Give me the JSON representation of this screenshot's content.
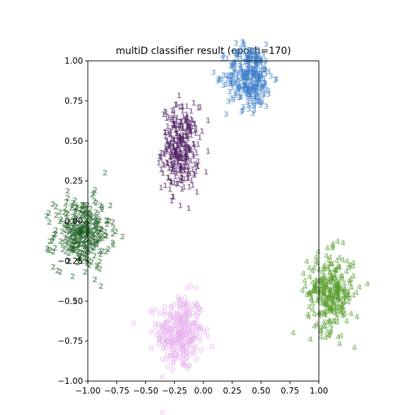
{
  "chart_data": {
    "type": "scatter",
    "title": "multiD classifier result (epoch=170)",
    "xlabel": "",
    "ylabel": "",
    "xlim": [
      -1.0,
      1.0
    ],
    "ylim": [
      -1.0,
      1.0
    ],
    "xticks": [
      "−1.00",
      "−0.75",
      "−0.50",
      "−0.25",
      "0.00",
      "0.25",
      "0.50",
      "0.75",
      "1.00"
    ],
    "yticks": [
      "−1.00",
      "−0.75",
      "−0.50",
      "−0.25",
      "0.00",
      "0.25",
      "0.50",
      "0.75",
      "1.00"
    ],
    "grid": false,
    "legend": "none",
    "marker": "class digit",
    "series": [
      {
        "label": "0",
        "color": "#e8b4ee",
        "center": [
          -0.2,
          -0.7
        ],
        "spread": [
          0.1,
          0.12
        ],
        "count": 300
      },
      {
        "label": "1",
        "color": "#4a1a5e",
        "center": [
          -0.2,
          0.45
        ],
        "spread": [
          0.08,
          0.13
        ],
        "count": 300
      },
      {
        "label": "2",
        "color": "#1b5e20",
        "center": [
          -1.05,
          -0.08
        ],
        "spread": [
          0.12,
          0.11
        ],
        "count": 300
      },
      {
        "label": "3",
        "color": "#3a7cc9",
        "center": [
          0.4,
          0.9
        ],
        "spread": [
          0.1,
          0.1
        ],
        "count": 300
      },
      {
        "label": "4",
        "color": "#5a9e2e",
        "center": [
          1.1,
          -0.45
        ],
        "spread": [
          0.1,
          0.12
        ],
        "count": 300
      }
    ]
  }
}
